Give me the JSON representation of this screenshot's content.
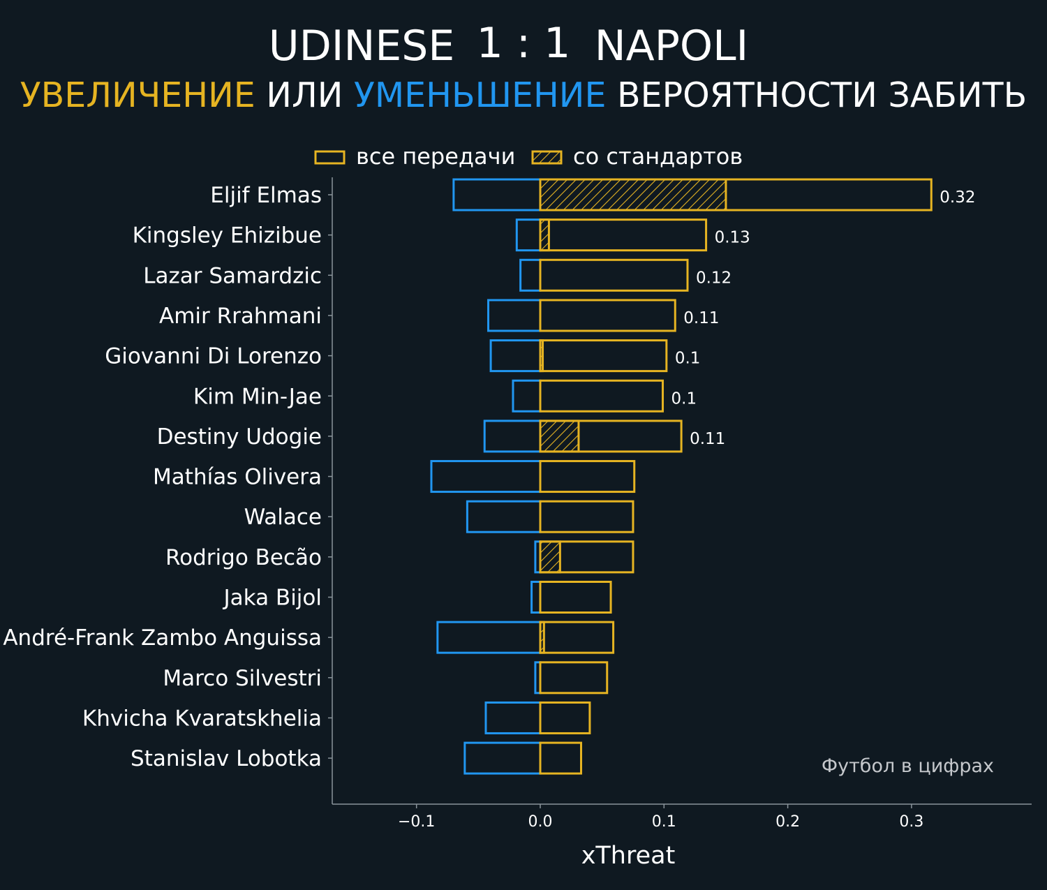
{
  "title": {
    "home": "UDINESE",
    "score": "1 : 1",
    "away": "NAPOLI"
  },
  "subtitle": {
    "part1": "УВЕЛИЧЕНИЕ",
    "part2": " ИЛИ ",
    "part3": "УМЕНЬШЕНИЕ",
    "part4": " ВЕРОЯТНОСТИ ЗАБИТЬ"
  },
  "legend": {
    "all": "все передачи",
    "setpieces": "со стандартов"
  },
  "colors": {
    "background": "#0f1921",
    "positive": "#e6b422",
    "negative": "#2196f0",
    "axis": "#8a949b"
  },
  "credit": "Футбол в цифрах",
  "chart_data": {
    "type": "bar",
    "orientation": "horizontal",
    "xlabel": "xThreat",
    "xlim": [
      -0.168,
      0.398
    ],
    "xticks": [
      {
        "value": -0.1,
        "label": "−0.1"
      },
      {
        "value": 0.0,
        "label": "0.0"
      },
      {
        "value": 0.1,
        "label": "0.1"
      },
      {
        "value": 0.2,
        "label": "0.2"
      },
      {
        "value": 0.3,
        "label": "0.3"
      }
    ],
    "categories": [
      "Eljif Elmas",
      "Kingsley Ehizibue",
      "Lazar Samardzic",
      "Amir Rrahmani",
      "Giovanni Di Lorenzo",
      "Kim Min-Jae",
      "Destiny Udogie",
      "Mathías Olivera",
      "Walace",
      "Rodrigo Becão",
      "Jaka Bijol",
      "André-Frank Zambo Anguissa",
      "Marco Silvestri",
      "Khvicha Kvaratskhelia",
      "Stanislav Lobotka"
    ],
    "series": [
      {
        "name": "все передачи",
        "values": [
          0.316,
          0.134,
          0.119,
          0.109,
          0.102,
          0.099,
          0.114,
          0.076,
          0.075,
          0.075,
          0.057,
          0.059,
          0.054,
          0.04,
          0.033
        ]
      },
      {
        "name": "со стандартов",
        "values": [
          0.15,
          0.007,
          0,
          0,
          0.002,
          0,
          0.031,
          0,
          0,
          0.016,
          0,
          0.003,
          0,
          0,
          0
        ]
      },
      {
        "name": "negative",
        "values": [
          -0.07,
          -0.019,
          -0.016,
          -0.042,
          -0.04,
          -0.022,
          -0.045,
          -0.088,
          -0.059,
          -0.004,
          -0.007,
          -0.083,
          -0.004,
          -0.044,
          -0.061
        ]
      }
    ],
    "value_labels": [
      "0.32",
      "0.13",
      "0.12",
      "0.11",
      "0.1",
      "0.1",
      "0.11",
      "",
      "",
      "",
      "",
      "",
      "",
      "",
      ""
    ]
  }
}
